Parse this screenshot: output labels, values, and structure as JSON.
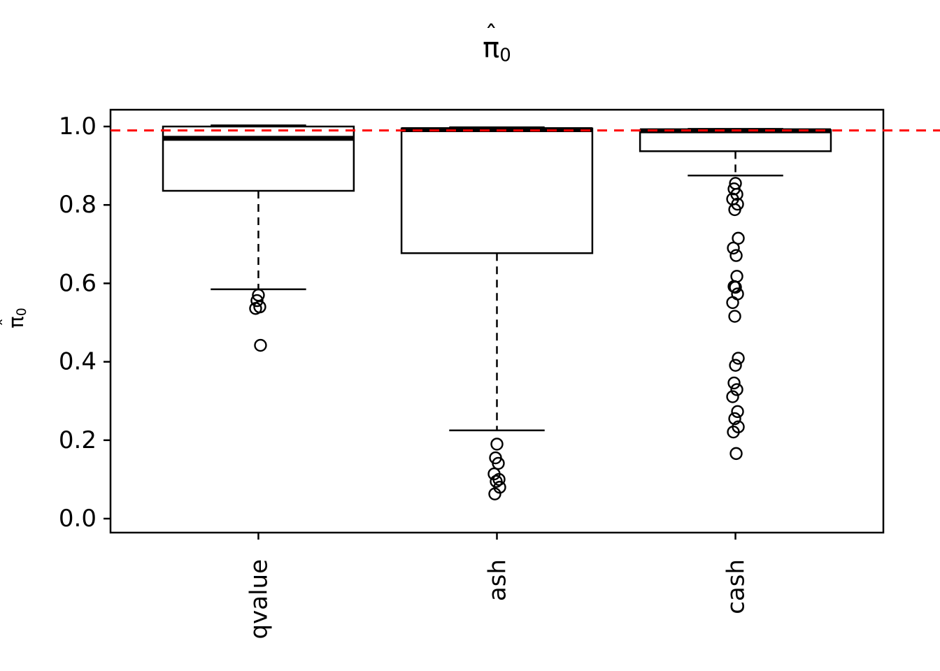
{
  "title": {
    "symbol": "π",
    "hat": "ˆ",
    "subscript": "0"
  },
  "y_axis": {
    "label": {
      "symbol": "π",
      "hat": "ˆ",
      "subscript": "0"
    },
    "ticks": [
      0.0,
      0.2,
      0.4,
      0.6,
      0.8,
      1.0
    ],
    "tick_labels": [
      "0.0",
      "0.2",
      "0.4",
      "0.6",
      "0.8",
      "1.0"
    ]
  },
  "colors": {
    "foreground": "#000000",
    "background": "#FFFFFF",
    "reference": "#FF0000"
  },
  "chart_data": {
    "type": "boxplot",
    "title": "pi0-hat",
    "ylabel": "pi0-hat",
    "categories": [
      "qvalue",
      "ash",
      "cash"
    ],
    "ylim": [
      -0.036,
      1.043
    ],
    "grid": false,
    "reference_line": {
      "value": 0.99,
      "color": "#FF0000",
      "style": "dashed"
    },
    "series": [
      {
        "name": "qvalue",
        "whisker_low": 0.585,
        "q1": 0.836,
        "median": 0.97,
        "q3": 1.0,
        "whisker_high": 1.003,
        "outliers": [
          0.57,
          0.556,
          0.54,
          0.536,
          0.442
        ]
      },
      {
        "name": "ash",
        "whisker_low": 0.225,
        "q1": 0.677,
        "median": 0.992,
        "q3": 0.995,
        "whisker_high": 0.998,
        "outliers": [
          0.19,
          0.155,
          0.141,
          0.114,
          0.1,
          0.095,
          0.08,
          0.063
        ]
      },
      {
        "name": "cash",
        "whisker_low": 0.875,
        "q1": 0.937,
        "median": 0.989,
        "q3": 0.991,
        "whisker_high": 0.994,
        "outliers": [
          0.855,
          0.841,
          0.827,
          0.815,
          0.802,
          0.788,
          0.715,
          0.69,
          0.671,
          0.618,
          0.592,
          0.59,
          0.573,
          0.551,
          0.516,
          0.409,
          0.391,
          0.346,
          0.329,
          0.311,
          0.273,
          0.255,
          0.234,
          0.221,
          0.166
        ]
      }
    ]
  }
}
